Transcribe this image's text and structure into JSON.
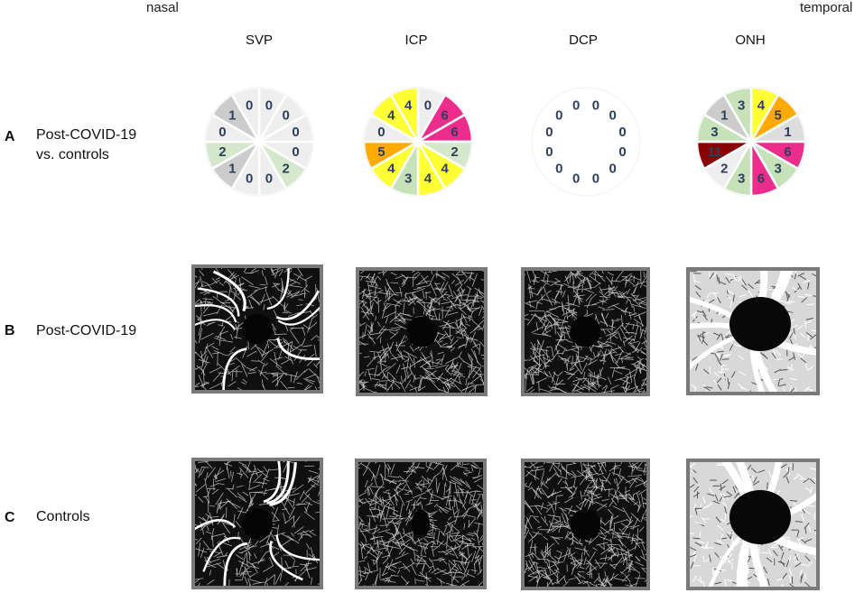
{
  "orientation": {
    "left": "nasal",
    "right": "temporal"
  },
  "columns": [
    "SVP",
    "ICP",
    "DCP",
    "ONH"
  ],
  "rows": [
    {
      "letter": "A",
      "label_lines": [
        "Post-COVID-19",
        "vs. controls"
      ]
    },
    {
      "letter": "B",
      "label_lines": [
        "Post-COVID-19"
      ]
    },
    {
      "letter": "C",
      "label_lines": [
        "Controls"
      ]
    }
  ],
  "wheels": [
    {
      "name": "SVP",
      "values": [
        0,
        0,
        0,
        0,
        2,
        0,
        0,
        1,
        2,
        0,
        1,
        0
      ],
      "colors": [
        "#eeeeee",
        "#eeeeee",
        "#eeeeee",
        "#eeeeee",
        "#d6e8cc",
        "#eeeeee",
        "#eeeeee",
        "#cccccc",
        "#d6e8cc",
        "#eeeeee",
        "#cccccc",
        "#eeeeee"
      ]
    },
    {
      "name": "ICP",
      "values": [
        0,
        6,
        6,
        2,
        4,
        4,
        3,
        4,
        5,
        0,
        4,
        4
      ],
      "colors": [
        "#eeeeee",
        "#ec2d8c",
        "#ec2d8c",
        "#d6e8cc",
        "#ffff33",
        "#ffff33",
        "#c6e2b8",
        "#ffff33",
        "#ffaa00",
        "#eeeeee",
        "#ffff33",
        "#ffff33"
      ]
    },
    {
      "name": "DCP",
      "values": [
        0,
        0,
        0,
        0,
        0,
        0,
        0,
        0,
        0,
        0,
        0,
        0
      ],
      "colors": [
        "#ffffff",
        "#ffffff",
        "#ffffff",
        "#ffffff",
        "#ffffff",
        "#ffffff",
        "#ffffff",
        "#ffffff",
        "#ffffff",
        "#ffffff",
        "#ffffff",
        "#ffffff"
      ]
    },
    {
      "name": "ONH",
      "values": [
        4,
        5,
        1,
        6,
        3,
        6,
        3,
        2,
        11,
        3,
        1,
        3
      ],
      "colors": [
        "#ffff33",
        "#ffaa00",
        "#dddddd",
        "#ec2d8c",
        "#c6e2b8",
        "#ec2d8c",
        "#c6e2b8",
        "#eeeeee",
        "#8b0000",
        "#c6e2b8",
        "#cccccc",
        "#c6e2b8"
      ]
    }
  ],
  "colors": {
    "wheel_text": "#2d3f5c",
    "wheel_border": "#ffffff",
    "octa_frame": "#7a7a7a"
  },
  "images": {
    "B": [
      "SVP angiogram",
      "ICP angiogram",
      "DCP angiogram",
      "ONH angiogram"
    ],
    "C": [
      "SVP angiogram",
      "ICP angiogram",
      "DCP angiogram",
      "ONH angiogram"
    ]
  }
}
